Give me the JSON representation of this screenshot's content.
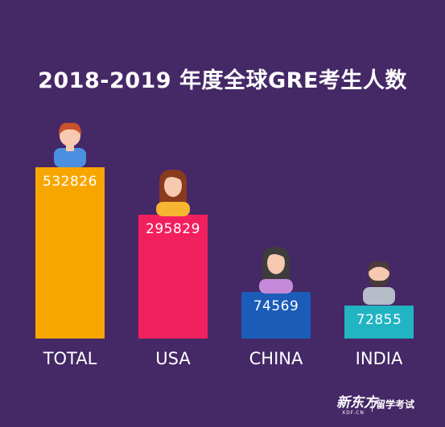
{
  "title": "2018-2019 年度全球GRE考生人数",
  "footer": {
    "logo": "新东方",
    "logo_sub": "XDF.CN",
    "text": "留学考试"
  },
  "colors": {
    "background": "#452866"
  },
  "chart_data": {
    "type": "bar",
    "title": "2018-2019 年度全球GRE考生人数",
    "categories": [
      "TOTAL",
      "USA",
      "CHINA",
      "INDIA"
    ],
    "values": [
      532826,
      295829,
      74569,
      72855
    ],
    "bar_colors": [
      "#f7a600",
      "#f21f5f",
      "#1b5cb8",
      "#21b4c2"
    ],
    "icons": [
      "male-person-icon",
      "female-person-icon",
      "female-person-icon",
      "bearded-male-person-icon"
    ],
    "xlabel": "",
    "ylabel": "",
    "grid": false,
    "legend": "none"
  }
}
